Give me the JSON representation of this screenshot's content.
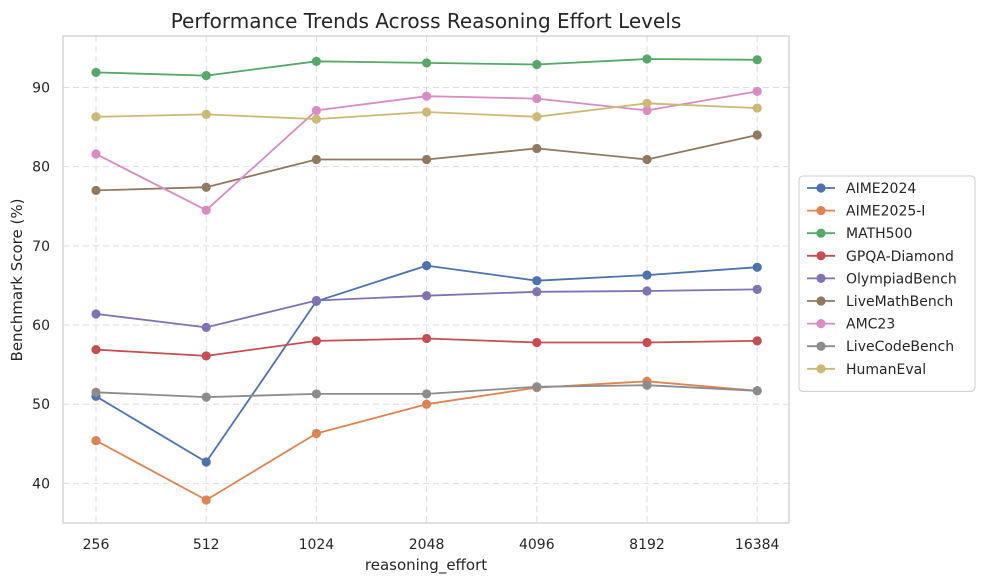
{
  "chart_data": {
    "type": "line",
    "title": "Performance Trends Across Reasoning Effort Levels",
    "xlabel": "reasoning_effort",
    "ylabel": "Benchmark Score (%)",
    "categories": [
      "256",
      "512",
      "1024",
      "2048",
      "4096",
      "8192",
      "16384"
    ],
    "ylim": [
      35,
      96.5
    ],
    "yticks": [
      40,
      50,
      60,
      70,
      80,
      90
    ],
    "grid": true,
    "legend_position": "center-right",
    "series": [
      {
        "name": "AIME2024",
        "color": "#4c72b0",
        "values": [
          51.0,
          42.7,
          63.0,
          67.5,
          65.6,
          66.3,
          67.3
        ]
      },
      {
        "name": "AIME2025-I",
        "color": "#dd8452",
        "values": [
          45.4,
          37.9,
          46.3,
          50.0,
          52.1,
          52.9,
          51.7
        ]
      },
      {
        "name": "MATH500",
        "color": "#55a868",
        "values": [
          91.9,
          91.5,
          93.3,
          93.1,
          92.9,
          93.6,
          93.5
        ]
      },
      {
        "name": "GPQA-Diamond",
        "color": "#c44e52",
        "values": [
          56.9,
          56.1,
          58.0,
          58.3,
          57.8,
          57.8,
          58.0
        ]
      },
      {
        "name": "OlympiadBench",
        "color": "#8172b3",
        "values": [
          61.4,
          59.7,
          63.1,
          63.7,
          64.2,
          64.3,
          64.5
        ]
      },
      {
        "name": "LiveMathBench",
        "color": "#937860",
        "values": [
          77.0,
          77.4,
          80.9,
          80.9,
          82.3,
          80.9,
          84.0
        ]
      },
      {
        "name": "AMC23",
        "color": "#da8bc3",
        "values": [
          81.6,
          74.5,
          87.1,
          88.9,
          88.6,
          87.1,
          89.5
        ]
      },
      {
        "name": "LiveCodeBench",
        "color": "#8c8c8c",
        "values": [
          51.5,
          50.9,
          51.3,
          51.3,
          52.2,
          52.4,
          51.7
        ]
      },
      {
        "name": "HumanEval",
        "color": "#ccb974",
        "values": [
          86.3,
          86.6,
          86.0,
          86.9,
          86.3,
          88.0,
          87.4
        ]
      }
    ]
  }
}
